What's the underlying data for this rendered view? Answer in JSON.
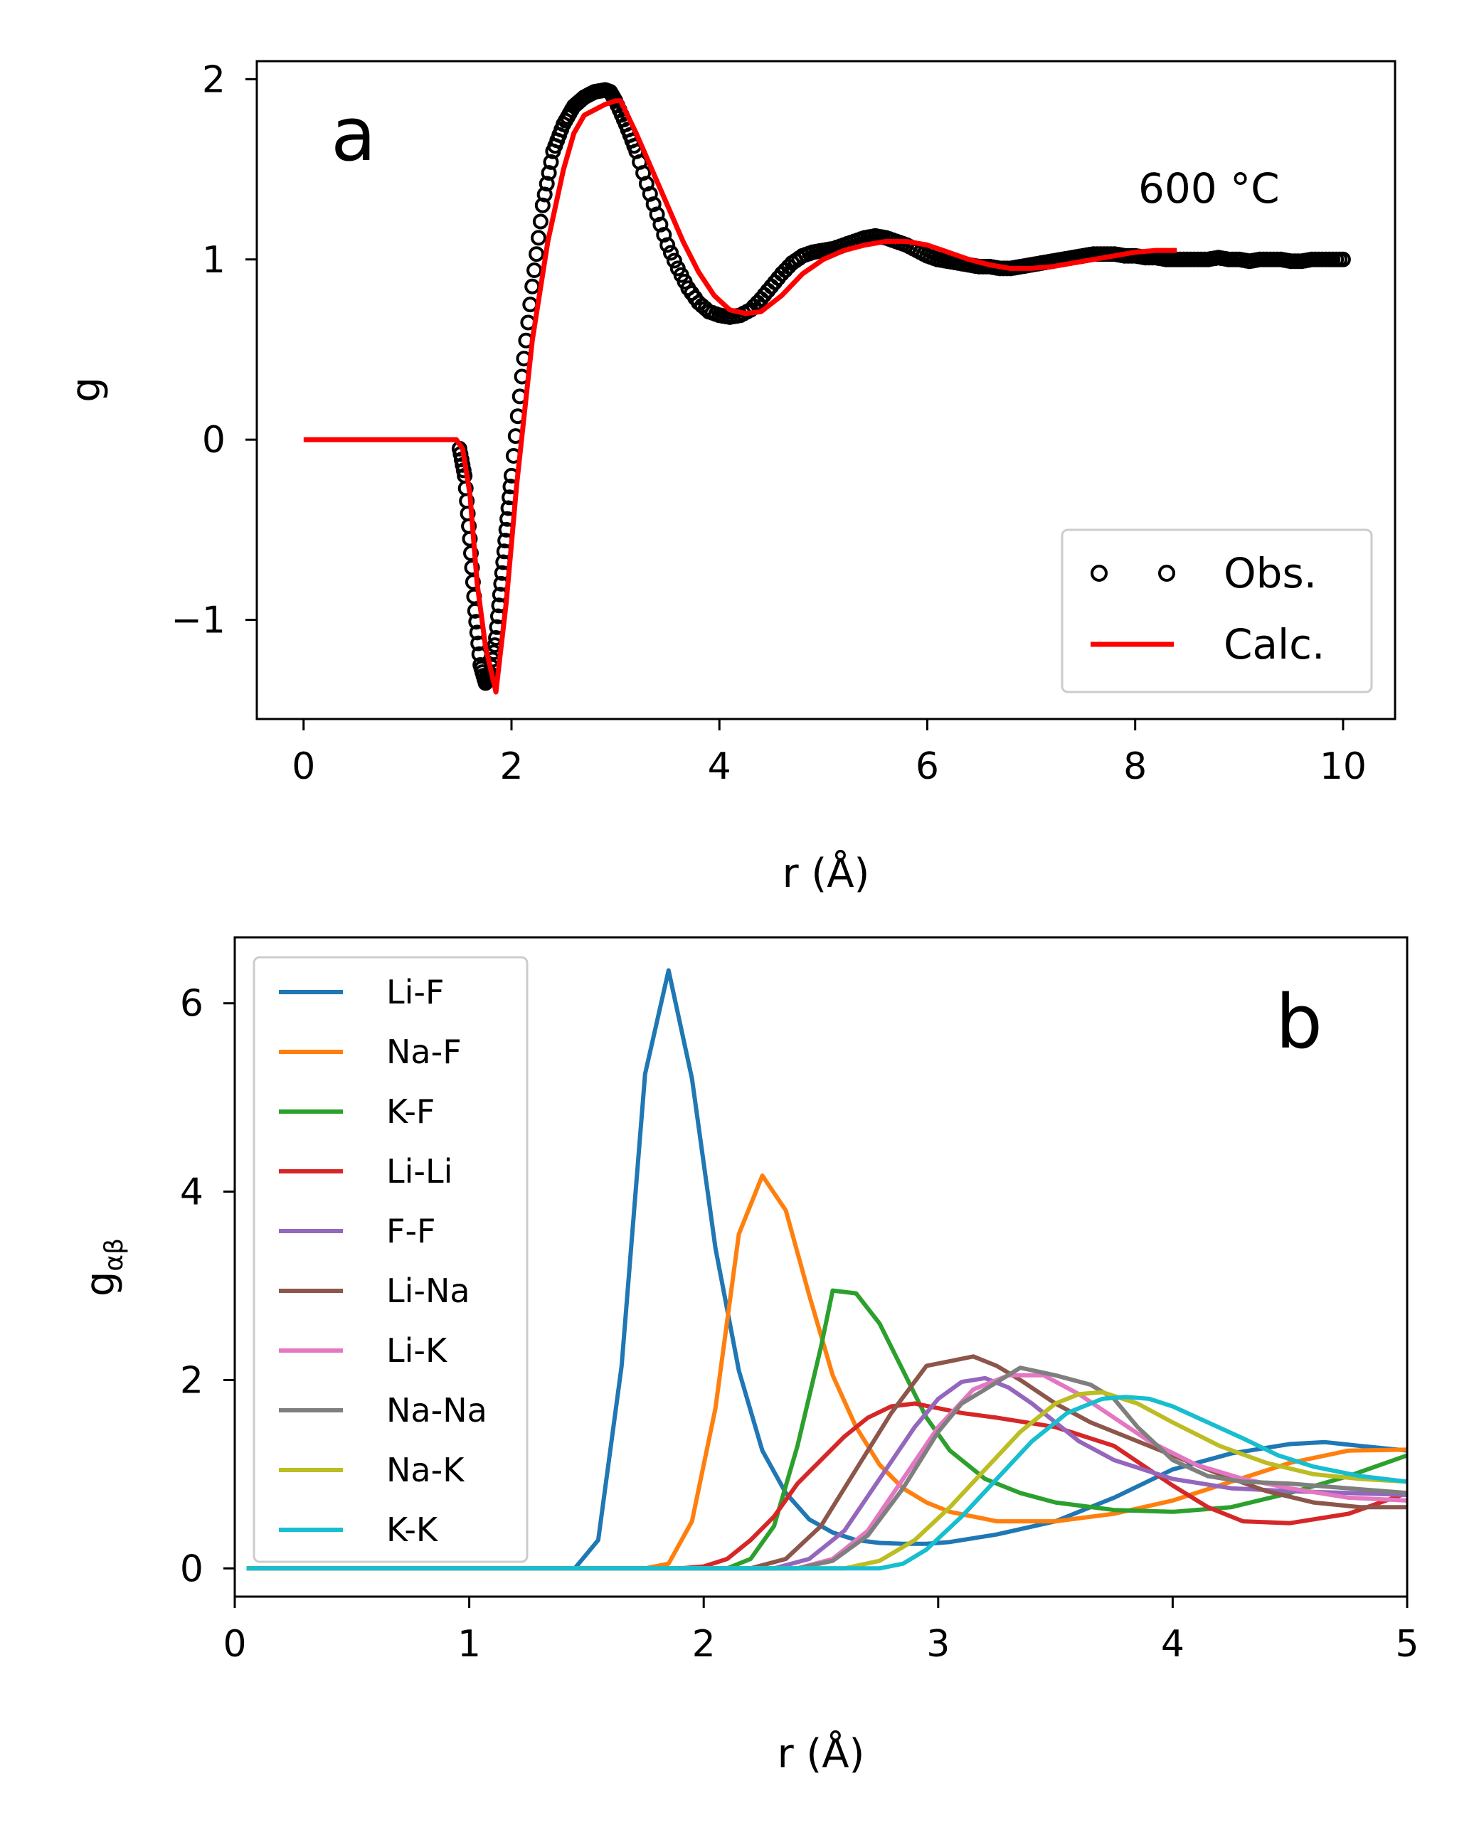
{
  "chart_data": [
    {
      "type": "line",
      "panel_label": "a",
      "annotation": "600 °C",
      "xlabel": "r (Å)",
      "ylabel": "g",
      "xlim": [
        -0.45,
        10.5
      ],
      "ylim": [
        -1.55,
        2.1
      ],
      "xticks": [
        0,
        2,
        4,
        6,
        8,
        10
      ],
      "xtick_labels": [
        "0",
        "2",
        "4",
        "6",
        "8",
        "10"
      ],
      "yticks": [
        -1,
        0,
        1,
        2
      ],
      "ytick_labels": [
        "−1",
        "0",
        "1",
        "2"
      ],
      "legend_position": "lower right",
      "series": [
        {
          "name": "Obs.",
          "style": "markers",
          "color": "#000000",
          "x": [
            1.5,
            1.55,
            1.6,
            1.65,
            1.7,
            1.75,
            1.8,
            1.85,
            1.9,
            1.95,
            2.0,
            2.1,
            2.2,
            2.3,
            2.4,
            2.5,
            2.6,
            2.7,
            2.8,
            2.9,
            2.95,
            3.0,
            3.1,
            3.2,
            3.3,
            3.4,
            3.5,
            3.6,
            3.7,
            3.8,
            3.9,
            4.0,
            4.1,
            4.2,
            4.3,
            4.4,
            4.5,
            4.6,
            4.7,
            4.8,
            4.9,
            5.0,
            5.1,
            5.2,
            5.3,
            5.4,
            5.5,
            5.6,
            5.7,
            5.8,
            5.9,
            6.0,
            6.1,
            6.2,
            6.3,
            6.4,
            6.5,
            6.6,
            6.7,
            6.8,
            6.9,
            7.0,
            7.1,
            7.2,
            7.3,
            7.4,
            7.5,
            7.6,
            7.7,
            7.8,
            7.9,
            8.0,
            8.1,
            8.2,
            8.3,
            8.4,
            8.5,
            8.6,
            8.7,
            8.8,
            8.9,
            9.0,
            9.1,
            9.2,
            9.3,
            9.4,
            9.5,
            9.6,
            9.7,
            9.8,
            9.9,
            10.0
          ],
          "y": [
            -0.05,
            -0.2,
            -0.55,
            -0.95,
            -1.25,
            -1.35,
            -1.3,
            -1.1,
            -0.8,
            -0.5,
            -0.2,
            0.35,
            0.85,
            1.3,
            1.6,
            1.75,
            1.85,
            1.9,
            1.93,
            1.94,
            1.93,
            1.88,
            1.75,
            1.6,
            1.42,
            1.25,
            1.08,
            0.95,
            0.84,
            0.76,
            0.71,
            0.69,
            0.68,
            0.69,
            0.72,
            0.78,
            0.85,
            0.92,
            0.98,
            1.02,
            1.04,
            1.05,
            1.06,
            1.08,
            1.1,
            1.12,
            1.13,
            1.12,
            1.1,
            1.08,
            1.05,
            1.02,
            1.0,
            0.99,
            0.98,
            0.97,
            0.96,
            0.96,
            0.95,
            0.95,
            0.96,
            0.97,
            0.98,
            0.99,
            1.0,
            1.01,
            1.02,
            1.03,
            1.03,
            1.03,
            1.02,
            1.02,
            1.01,
            1.01,
            1.0,
            1.0,
            1.0,
            1.0,
            1.0,
            1.01,
            1.0,
            1.0,
            0.99,
            1.0,
            1.0,
            1.0,
            0.99,
            0.99,
            1.0,
            1.0,
            1.0,
            1.0
          ]
        },
        {
          "name": "Calc.",
          "style": "line",
          "color": "#ff0000",
          "x": [
            0.0,
            1.47,
            1.53,
            1.6,
            1.67,
            1.75,
            1.85,
            1.95,
            2.05,
            2.2,
            2.35,
            2.5,
            2.6,
            2.7,
            2.8,
            2.9,
            3.0,
            3.05,
            3.2,
            3.35,
            3.5,
            3.65,
            3.8,
            3.95,
            4.1,
            4.25,
            4.4,
            4.6,
            4.8,
            5.0,
            5.2,
            5.4,
            5.6,
            5.8,
            6.0,
            6.2,
            6.4,
            6.6,
            6.8,
            7.0,
            7.2,
            7.4,
            7.6,
            7.8,
            8.0,
            8.2,
            8.4
          ],
          "y": [
            0.0,
            0.0,
            -0.05,
            -0.3,
            -0.8,
            -1.15,
            -1.4,
            -0.9,
            -0.25,
            0.55,
            1.1,
            1.5,
            1.7,
            1.8,
            1.83,
            1.86,
            1.88,
            1.88,
            1.7,
            1.5,
            1.3,
            1.1,
            0.93,
            0.8,
            0.72,
            0.7,
            0.71,
            0.8,
            0.92,
            1.0,
            1.05,
            1.08,
            1.1,
            1.1,
            1.08,
            1.04,
            1.0,
            0.97,
            0.95,
            0.95,
            0.96,
            0.98,
            1.0,
            1.02,
            1.04,
            1.05,
            1.05
          ]
        }
      ]
    },
    {
      "type": "line",
      "panel_label": "b",
      "xlabel": "r (Å)",
      "ylabel_main": "g",
      "ylabel_sub": "αβ",
      "xlim": [
        0,
        5
      ],
      "ylim": [
        -0.3,
        6.7
      ],
      "xticks": [
        0,
        1,
        2,
        3,
        4,
        5
      ],
      "xtick_labels": [
        "0",
        "1",
        "2",
        "3",
        "4",
        "5"
      ],
      "yticks": [
        0,
        2,
        4,
        6
      ],
      "ytick_labels": [
        "0",
        "2",
        "4",
        "6"
      ],
      "legend_position": "upper left",
      "series": [
        {
          "name": "Li-F",
          "color": "#1f77b4",
          "x": [
            0.05,
            1.45,
            1.55,
            1.65,
            1.75,
            1.85,
            1.95,
            2.05,
            2.15,
            2.25,
            2.35,
            2.45,
            2.55,
            2.65,
            2.75,
            2.85,
            2.95,
            3.05,
            3.25,
            3.5,
            3.75,
            4.0,
            4.25,
            4.5,
            4.65,
            4.8,
            5.0
          ],
          "y": [
            0.0,
            0.0,
            0.3,
            2.15,
            5.25,
            6.35,
            5.2,
            3.4,
            2.1,
            1.25,
            0.8,
            0.52,
            0.38,
            0.3,
            0.27,
            0.26,
            0.26,
            0.28,
            0.36,
            0.5,
            0.75,
            1.05,
            1.22,
            1.32,
            1.34,
            1.3,
            1.25
          ]
        },
        {
          "name": "Na-F",
          "color": "#ff7f0e",
          "x": [
            0.05,
            1.75,
            1.85,
            1.95,
            2.05,
            2.15,
            2.25,
            2.35,
            2.45,
            2.55,
            2.65,
            2.75,
            2.85,
            2.95,
            3.05,
            3.25,
            3.5,
            3.75,
            4.0,
            4.25,
            4.5,
            4.75,
            5.0
          ],
          "y": [
            0.0,
            0.0,
            0.05,
            0.5,
            1.7,
            3.55,
            4.17,
            3.8,
            2.9,
            2.05,
            1.5,
            1.1,
            0.85,
            0.7,
            0.6,
            0.5,
            0.5,
            0.58,
            0.72,
            0.92,
            1.12,
            1.25,
            1.26
          ]
        },
        {
          "name": "K-F",
          "color": "#2ca02c",
          "x": [
            0.05,
            2.1,
            2.2,
            2.3,
            2.4,
            2.5,
            2.55,
            2.65,
            2.75,
            2.85,
            2.95,
            3.05,
            3.2,
            3.35,
            3.5,
            3.75,
            4.0,
            4.25,
            4.5,
            4.75,
            5.0
          ],
          "y": [
            0.0,
            0.0,
            0.1,
            0.45,
            1.3,
            2.35,
            2.95,
            2.92,
            2.6,
            2.1,
            1.6,
            1.25,
            0.95,
            0.8,
            0.7,
            0.62,
            0.6,
            0.65,
            0.8,
            0.98,
            1.2
          ]
        },
        {
          "name": "Li-Li",
          "color": "#d62728",
          "x": [
            0.05,
            1.9,
            2.0,
            2.1,
            2.2,
            2.3,
            2.4,
            2.5,
            2.6,
            2.7,
            2.8,
            2.9,
            3.0,
            3.1,
            3.25,
            3.5,
            3.75,
            4.0,
            4.15,
            4.3,
            4.5,
            4.75,
            5.0
          ],
          "y": [
            0.0,
            0.0,
            0.02,
            0.1,
            0.3,
            0.55,
            0.9,
            1.15,
            1.4,
            1.6,
            1.72,
            1.75,
            1.7,
            1.65,
            1.6,
            1.5,
            1.3,
            0.88,
            0.65,
            0.5,
            0.48,
            0.58,
            0.8
          ]
        },
        {
          "name": "F-F",
          "color": "#9467bd",
          "x": [
            0.05,
            2.3,
            2.45,
            2.6,
            2.75,
            2.9,
            3.0,
            3.1,
            3.2,
            3.3,
            3.4,
            3.5,
            3.6,
            3.75,
            4.0,
            4.25,
            4.5,
            4.75,
            5.0
          ],
          "y": [
            0.0,
            0.0,
            0.1,
            0.4,
            0.95,
            1.5,
            1.8,
            1.98,
            2.02,
            1.92,
            1.75,
            1.55,
            1.35,
            1.15,
            0.95,
            0.85,
            0.82,
            0.8,
            0.78
          ]
        },
        {
          "name": "Li-Na",
          "color": "#8c564b",
          "x": [
            0.05,
            2.2,
            2.35,
            2.5,
            2.65,
            2.8,
            2.95,
            3.05,
            3.15,
            3.25,
            3.35,
            3.5,
            3.65,
            3.8,
            4.0,
            4.2,
            4.4,
            4.6,
            4.8,
            5.0
          ],
          "y": [
            0.0,
            0.0,
            0.1,
            0.45,
            1.05,
            1.65,
            2.15,
            2.2,
            2.25,
            2.15,
            2.0,
            1.75,
            1.55,
            1.4,
            1.2,
            1.0,
            0.82,
            0.7,
            0.65,
            0.65
          ]
        },
        {
          "name": "Li-K",
          "color": "#e377c2",
          "x": [
            0.05,
            2.4,
            2.55,
            2.7,
            2.85,
            3.0,
            3.15,
            3.3,
            3.45,
            3.6,
            3.75,
            3.9,
            4.1,
            4.3,
            4.5,
            4.75,
            5.0
          ],
          "y": [
            0.0,
            0.0,
            0.1,
            0.4,
            0.95,
            1.5,
            1.9,
            2.05,
            2.05,
            1.85,
            1.6,
            1.35,
            1.1,
            0.95,
            0.85,
            0.75,
            0.72
          ]
        },
        {
          "name": "Na-Na",
          "color": "#7f7f7f",
          "x": [
            0.05,
            2.4,
            2.55,
            2.7,
            2.85,
            3.0,
            3.1,
            3.2,
            3.35,
            3.5,
            3.65,
            3.75,
            3.85,
            4.0,
            4.15,
            4.3,
            4.5,
            4.75,
            5.0
          ],
          "y": [
            0.0,
            0.0,
            0.08,
            0.35,
            0.85,
            1.45,
            1.75,
            1.9,
            2.13,
            2.05,
            1.95,
            1.8,
            1.5,
            1.15,
            0.98,
            0.92,
            0.9,
            0.85,
            0.8
          ]
        },
        {
          "name": "Na-K",
          "color": "#bcbd22",
          "x": [
            0.05,
            2.6,
            2.75,
            2.9,
            3.05,
            3.2,
            3.35,
            3.5,
            3.6,
            3.7,
            3.85,
            4.0,
            4.2,
            4.4,
            4.6,
            4.8,
            5.0
          ],
          "y": [
            0.0,
            0.0,
            0.08,
            0.3,
            0.65,
            1.05,
            1.45,
            1.75,
            1.85,
            1.87,
            1.75,
            1.55,
            1.3,
            1.12,
            1.0,
            0.95,
            0.92
          ]
        },
        {
          "name": "K-K",
          "color": "#17becf",
          "x": [
            0.05,
            2.75,
            2.85,
            2.95,
            3.1,
            3.25,
            3.4,
            3.55,
            3.7,
            3.8,
            3.9,
            4.0,
            4.15,
            4.3,
            4.45,
            4.6,
            4.8,
            5.0
          ],
          "y": [
            0.0,
            0.0,
            0.05,
            0.2,
            0.55,
            0.95,
            1.35,
            1.65,
            1.8,
            1.82,
            1.8,
            1.72,
            1.55,
            1.38,
            1.2,
            1.08,
            0.98,
            0.92
          ]
        }
      ]
    }
  ]
}
